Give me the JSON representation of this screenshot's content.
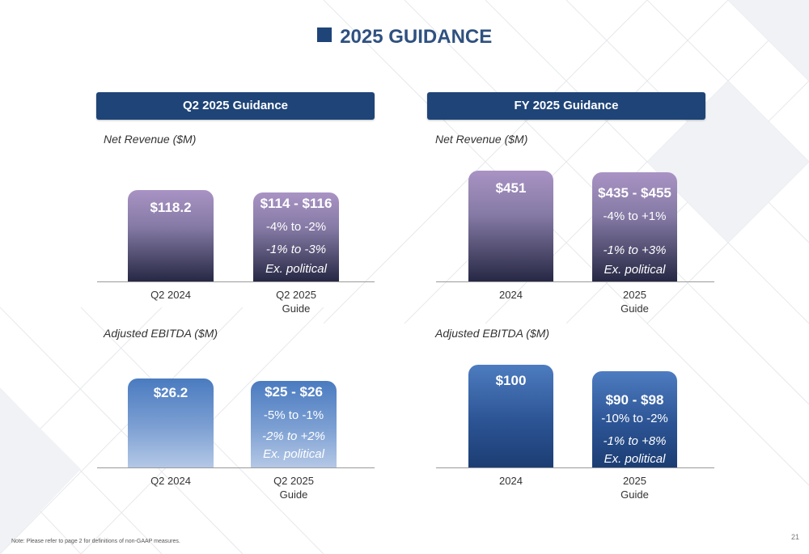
{
  "page": {
    "title": "2025 GUIDANCE",
    "note": "Note:  Please refer to page 2 for definitions of non-GAAP measures.",
    "page_number": "21"
  },
  "panels": {
    "q2": {
      "header": "Q2 2025 Guidance",
      "revenue_label": "Net Revenue ($M)",
      "ebitda_label": "Adjusted EBITDA ($M)"
    },
    "fy": {
      "header": "FY 2025 Guidance",
      "revenue_label": "Net Revenue ($M)",
      "ebitda_label": "Adjusted EBITDA ($M)"
    }
  },
  "chart_data": [
    {
      "type": "bar",
      "title": "Net Revenue ($M)",
      "panel": "Q2 2025 Guidance",
      "categories": [
        "Q2 2024",
        "Q2 2025\nGuide"
      ],
      "values": [
        118.2,
        115
      ],
      "range": [
        null,
        [
          114,
          116
        ]
      ],
      "value_labels": [
        "$118.2",
        "$114 - $116"
      ],
      "change_labels": [
        "",
        "-4% to -2%"
      ],
      "ex_political_lines": [
        [
          "",
          ""
        ],
        [
          "-1% to -3%",
          "Ex. political"
        ]
      ],
      "ylim": [
        0,
        125
      ]
    },
    {
      "type": "bar",
      "title": "Net Revenue ($M)",
      "panel": "FY 2025 Guidance",
      "categories": [
        "2024",
        "2025\nGuide"
      ],
      "values": [
        451,
        445
      ],
      "range": [
        null,
        [
          435,
          455
        ]
      ],
      "value_labels": [
        "$451",
        "$435 - $455"
      ],
      "change_labels": [
        "",
        "-4% to +1%"
      ],
      "ex_political_lines": [
        [
          "",
          ""
        ],
        [
          "-1% to +3%",
          "Ex. political"
        ]
      ],
      "ylim": [
        0,
        460
      ]
    },
    {
      "type": "bar",
      "title": "Adjusted EBITDA ($M)",
      "panel": "Q2 2025 Guidance",
      "categories": [
        "Q2 2024",
        "Q2 2025\nGuide"
      ],
      "values": [
        26.2,
        25.5
      ],
      "range": [
        null,
        [
          25,
          26
        ]
      ],
      "value_labels": [
        "$26.2",
        "$25 - $26"
      ],
      "change_labels": [
        "",
        "-5% to -1%"
      ],
      "ex_political_lines": [
        [
          "",
          ""
        ],
        [
          "-2% to +2%",
          "Ex. political"
        ]
      ],
      "ylim": [
        0,
        26.6
      ]
    },
    {
      "type": "bar",
      "title": "Adjusted EBITDA ($M)",
      "panel": "FY 2025 Guidance",
      "categories": [
        "2024",
        "2025\nGuide"
      ],
      "values": [
        100,
        94
      ],
      "range": [
        null,
        [
          90,
          98
        ]
      ],
      "value_labels": [
        "$100",
        "$90 - $98"
      ],
      "change_labels": [
        "",
        "-10% to -2%"
      ],
      "ex_political_lines": [
        [
          "",
          ""
        ],
        [
          "-1% to +8%",
          "Ex. political"
        ]
      ],
      "ylim": [
        0,
        101
      ]
    }
  ],
  "colors": {
    "header_blue": "#1f4478",
    "title_blue": "#2f5180",
    "revenue_bar_top": "#a993c4",
    "revenue_bar_bottom": "#262844",
    "q2_ebitda_bar_top": "#4a7bc0",
    "q2_ebitda_bar_bottom": "#b4c8e6",
    "fy_ebitda_bar_top": "#4d7cc0",
    "fy_ebitda_bar_bottom": "#1c3d73"
  }
}
